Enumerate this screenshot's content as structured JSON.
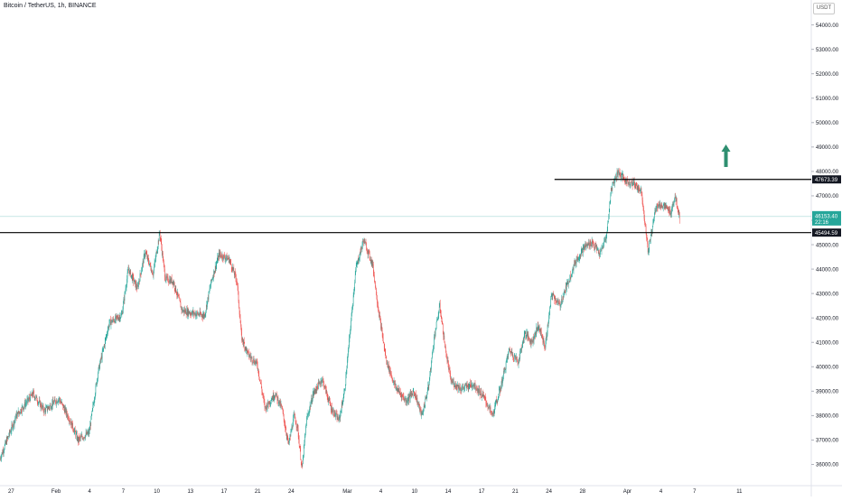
{
  "header": {
    "symbol": "Bitcoin / TetherUS, 1h, BINANCE",
    "currency": "USDT"
  },
  "chart_data": {
    "type": "candlestick",
    "title": "Bitcoin / TetherUS, 1h, BINANCE",
    "ylim": [
      35500,
      55000
    ],
    "y_ticks": [
      "36000.00",
      "37000.00",
      "38000.00",
      "39000.00",
      "40000.00",
      "41000.00",
      "42000.00",
      "43000.00",
      "44000.00",
      "45000.00",
      "46000.00",
      "47000.00",
      "48000.00",
      "49000.00",
      "50000.00",
      "51000.00",
      "52000.00",
      "53000.00",
      "54000.00"
    ],
    "x_ticks": [
      {
        "day": -4,
        "label": "27"
      },
      {
        "day": 0,
        "label": "Feb"
      },
      {
        "day": 3,
        "label": "4"
      },
      {
        "day": 6,
        "label": "7"
      },
      {
        "day": 9,
        "label": "10"
      },
      {
        "day": 12,
        "label": "13"
      },
      {
        "day": 15,
        "label": "17"
      },
      {
        "day": 18,
        "label": "21"
      },
      {
        "day": 21,
        "label": "24"
      },
      {
        "day": 26,
        "label": "Mar"
      },
      {
        "day": 29,
        "label": "4"
      },
      {
        "day": 32,
        "label": "10"
      },
      {
        "day": 35,
        "label": "14"
      },
      {
        "day": 38,
        "label": "17"
      },
      {
        "day": 41,
        "label": "21"
      },
      {
        "day": 44,
        "label": "24"
      },
      {
        "day": 47,
        "label": "28"
      },
      {
        "day": 51,
        "label": "Apr"
      },
      {
        "day": 54,
        "label": "4"
      },
      {
        "day": 57,
        "label": "7"
      },
      {
        "day": 61,
        "label": "11"
      }
    ],
    "x_range": [
      -5,
      63
    ],
    "price_path": [
      [
        -5,
        36200
      ],
      [
        -3.5,
        38000
      ],
      [
        -2,
        38900
      ],
      [
        -1,
        38200
      ],
      [
        0.3,
        38700
      ],
      [
        1.3,
        37800
      ],
      [
        2,
        37000
      ],
      [
        3,
        37300
      ],
      [
        3.8,
        39800
      ],
      [
        4.8,
        41800
      ],
      [
        5.9,
        42100
      ],
      [
        6.5,
        44000
      ],
      [
        7.3,
        43200
      ],
      [
        8,
        44700
      ],
      [
        8.7,
        43800
      ],
      [
        9.3,
        45500
      ],
      [
        9.8,
        43600
      ],
      [
        10.5,
        43500
      ],
      [
        11.3,
        42300
      ],
      [
        12.2,
        42200
      ],
      [
        13.3,
        42100
      ],
      [
        13.9,
        43500
      ],
      [
        14.6,
        44600
      ],
      [
        15.5,
        44400
      ],
      [
        16.2,
        43500
      ],
      [
        16.6,
        41200
      ],
      [
        17.2,
        40500
      ],
      [
        18,
        40100
      ],
      [
        18.7,
        38300
      ],
      [
        19.6,
        38900
      ],
      [
        20.2,
        38300
      ],
      [
        20.8,
        36800
      ],
      [
        21.3,
        38000
      ],
      [
        21.6,
        37500
      ],
      [
        22,
        35800
      ],
      [
        22.4,
        37800
      ],
      [
        23,
        38900
      ],
      [
        23.8,
        39500
      ],
      [
        24.6,
        38300
      ],
      [
        25.3,
        37800
      ],
      [
        25.8,
        39000
      ],
      [
        26.3,
        41500
      ],
      [
        26.8,
        44000
      ],
      [
        27.5,
        45200
      ],
      [
        28.3,
        44200
      ],
      [
        28.8,
        42400
      ],
      [
        29.5,
        40300
      ],
      [
        30.3,
        39200
      ],
      [
        31.3,
        38600
      ],
      [
        32,
        39000
      ],
      [
        32.7,
        38000
      ],
      [
        33.3,
        39200
      ],
      [
        33.8,
        41200
      ],
      [
        34.3,
        42500
      ],
      [
        34.8,
        40700
      ],
      [
        35.3,
        39400
      ],
      [
        36.2,
        39100
      ],
      [
        37.3,
        39300
      ],
      [
        38.3,
        38700
      ],
      [
        39,
        38000
      ],
      [
        39.7,
        39100
      ],
      [
        40.5,
        40700
      ],
      [
        41.3,
        40200
      ],
      [
        41.9,
        41400
      ],
      [
        42.5,
        41000
      ],
      [
        43.1,
        41700
      ],
      [
        43.7,
        40800
      ],
      [
        44.3,
        43000
      ],
      [
        45,
        42500
      ],
      [
        45.7,
        43400
      ],
      [
        46.4,
        44300
      ],
      [
        47.2,
        44900
      ],
      [
        47.9,
        45100
      ],
      [
        48.6,
        44600
      ],
      [
        49.2,
        45400
      ],
      [
        49.6,
        47300
      ],
      [
        50.2,
        48000
      ],
      [
        50.9,
        47600
      ],
      [
        51.6,
        47500
      ],
      [
        52.3,
        47200
      ],
      [
        52.9,
        44700
      ],
      [
        53.6,
        46600
      ],
      [
        54.3,
        46600
      ],
      [
        54.9,
        46300
      ],
      [
        55.3,
        47000
      ],
      [
        55.7,
        46153
      ]
    ],
    "horizontal_lines": [
      {
        "value": 47673.39,
        "label": "47673.39",
        "from_day": 44.5,
        "color": "#000000"
      },
      {
        "value": 45494.59,
        "label": "45494.59",
        "from_day": -5,
        "color": "#000000"
      }
    ],
    "last_price": {
      "value": 46153.4,
      "label": "46153.40",
      "countdown": "22:16",
      "color": "#26a69a"
    },
    "annotation": {
      "type": "arrow-up",
      "day": 59.8,
      "value": 48700,
      "color": "#2e8f70"
    },
    "up_color": "#26a69a",
    "down_color": "#ef5350"
  }
}
